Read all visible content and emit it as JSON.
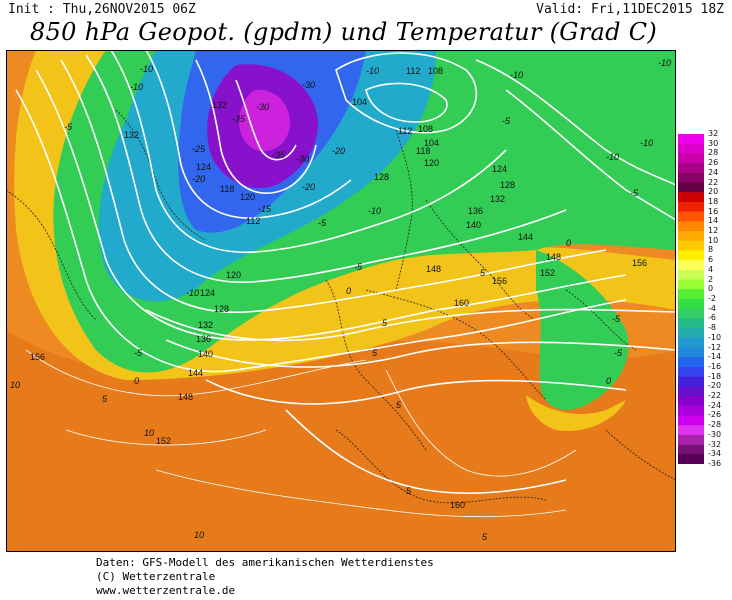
{
  "header": {
    "init": "Init : Thu,26NOV2015 06Z",
    "valid": "Valid: Fri,11DEC2015 18Z",
    "title": "850 hPa Geopot. (gpdm) und Temperatur (Grad C)"
  },
  "map": {
    "geopotential_labels": [
      "104",
      "108",
      "112",
      "118",
      "120",
      "124",
      "128",
      "132",
      "136",
      "140",
      "144",
      "148",
      "152",
      "156",
      "160"
    ],
    "temperature_labels": [
      "-35",
      "-30",
      "-25",
      "-20",
      "-15",
      "-10",
      "-5",
      "0",
      "5",
      "10"
    ]
  },
  "colorbar": {
    "labels": [
      "32",
      "30",
      "28",
      "26",
      "24",
      "22",
      "20",
      "18",
      "16",
      "14",
      "12",
      "10",
      "8",
      "6",
      "4",
      "2",
      "0",
      "-2",
      "-4",
      "-6",
      "-8",
      "-10",
      "-12",
      "-14",
      "-16",
      "-18",
      "-20",
      "-22",
      "-24",
      "-26",
      "-28",
      "-30",
      "-32",
      "-34",
      "-36"
    ],
    "colors": [
      "#ee00ee",
      "#dd00cc",
      "#cc00aa",
      "#aa0088",
      "#880066",
      "#660044",
      "#cc0000",
      "#ee2200",
      "#ff5500",
      "#ff8800",
      "#ffaa00",
      "#ffcc00",
      "#ffee00",
      "#ffff55",
      "#ccff55",
      "#99ff33",
      "#55ee33",
      "#33dd44",
      "#33cc66",
      "#22bb88",
      "#22aaaa",
      "#2299cc",
      "#2288dd",
      "#2266ee",
      "#3344ee",
      "#4422dd",
      "#6611cc",
      "#8800cc",
      "#aa00dd",
      "#cc00ee",
      "#dd33ee",
      "#aa22aa",
      "#771177",
      "#550055"
    ]
  },
  "footer": {
    "line1": "Daten: GFS-Modell des amerikanischen Wetterdienstes",
    "line2": "(C) Wetterzentrale",
    "line3": "www.wetterzentrale.de"
  }
}
